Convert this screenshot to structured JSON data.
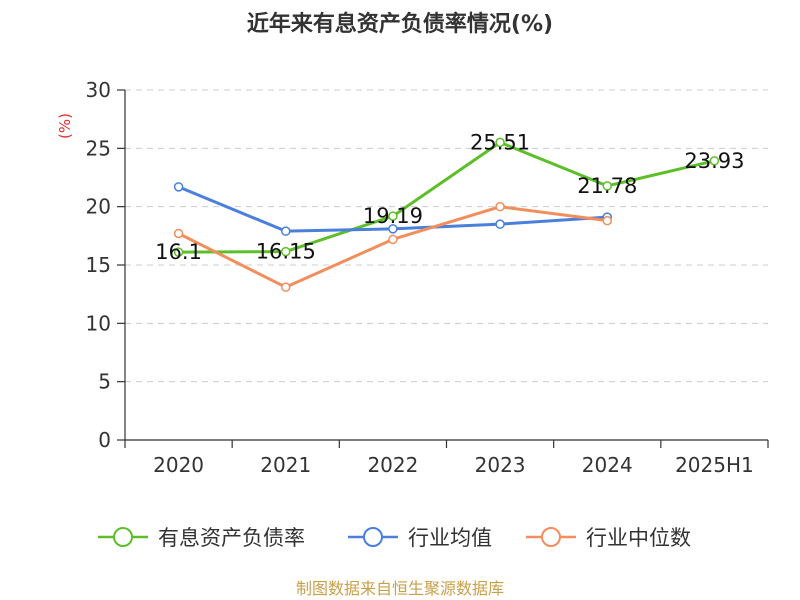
{
  "chart_data": {
    "type": "line",
    "title": "近年来有息资产负债率情况(%)",
    "ylabel": "(%)",
    "xlabel": "",
    "categories": [
      "2020",
      "2021",
      "2022",
      "2023",
      "2024",
      "2025H1"
    ],
    "ylim": [
      0,
      30
    ],
    "yticks": [
      0,
      5,
      10,
      15,
      20,
      25,
      30
    ],
    "grid": true,
    "legend_position": "bottom",
    "series": [
      {
        "name": "有息资产负债率",
        "color": "#5cbf2a",
        "values": [
          16.1,
          16.15,
          19.19,
          25.51,
          21.78,
          23.93
        ],
        "labels": [
          "16.1",
          "16.15",
          "19.19",
          "25.51",
          "21.78",
          "23.93"
        ]
      },
      {
        "name": "行业均值",
        "color": "#4a7fdb",
        "values": [
          21.7,
          17.9,
          18.1,
          18.5,
          19.1,
          null
        ]
      },
      {
        "name": "行业中位数",
        "color": "#f28e5c",
        "values": [
          17.7,
          13.1,
          17.2,
          20.0,
          18.8,
          null
        ]
      }
    ]
  },
  "source": "制图数据来自恒生聚源数据库"
}
